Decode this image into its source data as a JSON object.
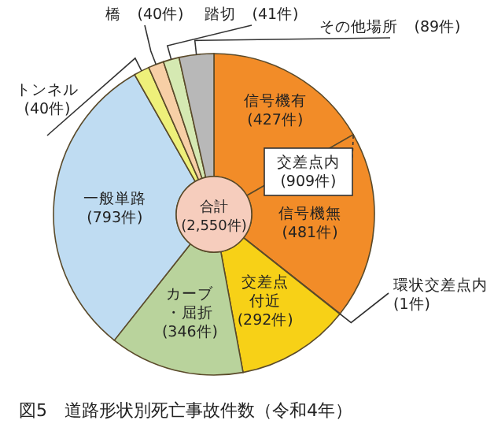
{
  "chart_data": {
    "type": "donut",
    "title": "図5　道路形状別死亡事故件数（令和4年）",
    "categories": [
      "信号機有",
      "信号機無",
      "環状交差点内",
      "交差点付近",
      "カーブ・屈折",
      "一般単路",
      "トンネル",
      "橋",
      "踏切",
      "その他場所"
    ],
    "values": [
      427,
      481,
      1,
      292,
      346,
      793,
      40,
      40,
      41,
      89
    ],
    "colors": [
      "#f28c28",
      "#f28c28",
      "#f28c28",
      "#f7d117",
      "#b9d39c",
      "#bfdcf2",
      "#eef07a",
      "#f7cfa6",
      "#d5e9b2",
      "#b8b8b8"
    ],
    "value_labels": [
      "(427件)",
      "(481件)",
      "(1件)",
      "(292件)",
      "(346件)",
      "(793件)",
      "(40件)",
      "(40件)",
      "(41件)",
      "(89件)"
    ],
    "annotations": [
      "交差点内\n(909件)",
      "合計\n(2,550件)"
    ]
  }
}
